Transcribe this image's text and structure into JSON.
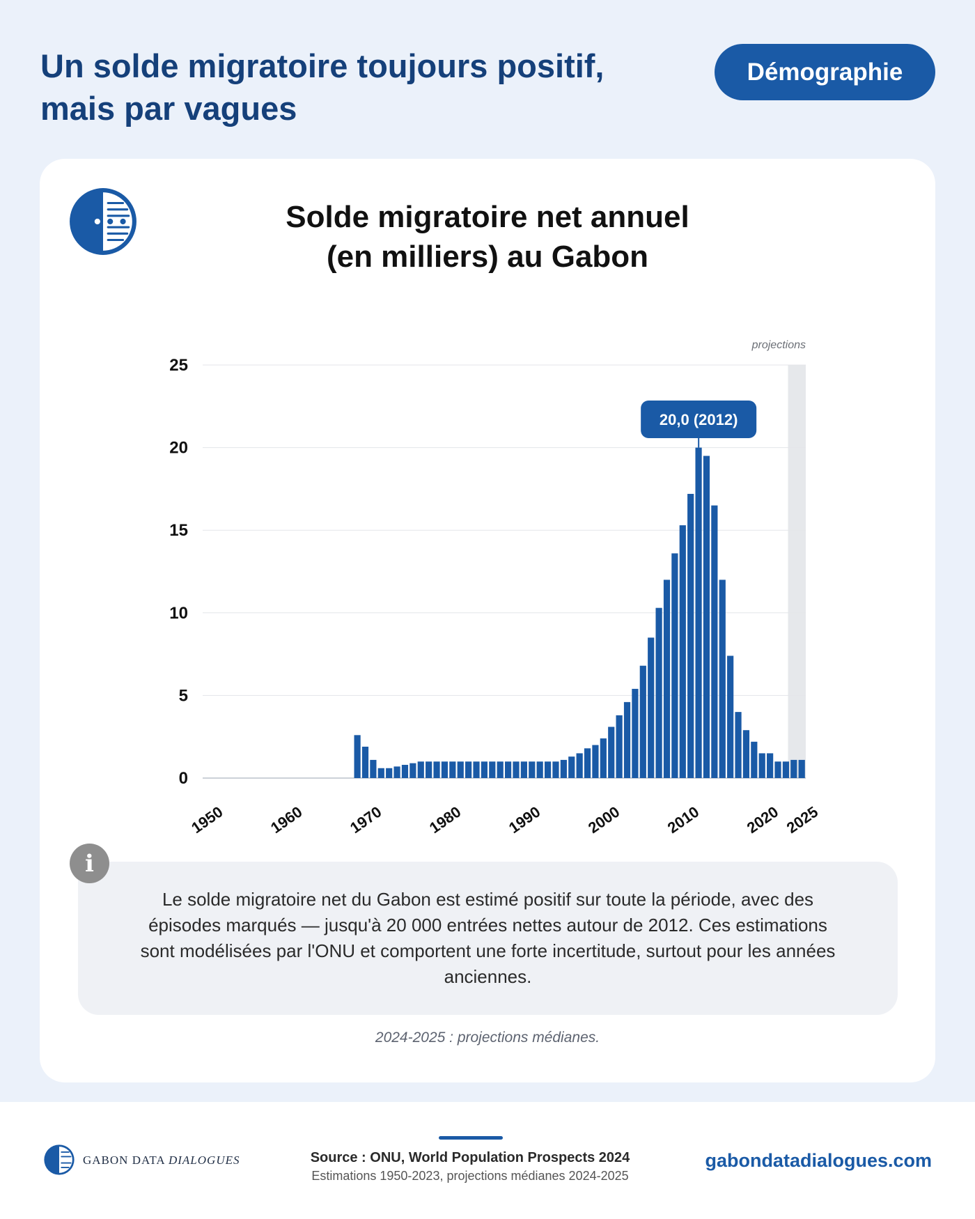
{
  "header": {
    "title_line1": "Un solde migratoire toujours positif,",
    "title_line2": "mais par vagues",
    "badge": "Démographie"
  },
  "card": {
    "logo_icon": "gabon-data-dialogues-logo-icon",
    "title_line1": "Solde migratoire net annuel",
    "title_line2": "(en milliers) au Gabon",
    "info_icon": "i",
    "info_text": "Le solde migratoire net du Gabon est estimé positif sur toute la période, avec des épisodes marqués — jusqu'à 20 000 entrées nettes autour de 2012. Ces estimations sont modélisées par l'ONU et comportent une forte incertitude, surtout pour les années anciennes.",
    "note": "2024-2025 : projections médianes."
  },
  "chart_data": {
    "type": "bar",
    "title": "Solde migratoire net annuel (en milliers) au Gabon",
    "xlabel": "",
    "ylabel": "",
    "x_start": 1950,
    "x_end": 2025,
    "x_tick_labels": [
      "1950",
      "1960",
      "1970",
      "1980",
      "1990",
      "2000",
      "2010",
      "2020",
      "2025"
    ],
    "y_tick_labels": [
      "0",
      "5",
      "10",
      "15",
      "20",
      "25"
    ],
    "ylim": [
      0,
      25
    ],
    "grid": true,
    "bar_color": "#1a5aa6",
    "projection_band": {
      "from": 2024,
      "to": 2025,
      "label": "projections",
      "color": "#e6e8eb"
    },
    "annotation": {
      "year": 2012,
      "label": "20,0 (2012)"
    },
    "series": [
      {
        "x": [
          1950,
          1951,
          1952,
          1953,
          1954,
          1955,
          1956,
          1957,
          1958,
          1959,
          1960,
          1961,
          1962,
          1963,
          1964,
          1965,
          1966,
          1967,
          1968,
          1969,
          1970,
          1971,
          1972,
          1973,
          1974,
          1975,
          1976,
          1977,
          1978,
          1979,
          1980,
          1981,
          1982,
          1983,
          1984,
          1985,
          1986,
          1987,
          1988,
          1989,
          1990,
          1991,
          1992,
          1993,
          1994,
          1995,
          1996,
          1997,
          1998,
          1999,
          2000,
          2001,
          2002,
          2003,
          2004,
          2005,
          2006,
          2007,
          2008,
          2009,
          2010,
          2011,
          2012,
          2013,
          2014,
          2015,
          2016,
          2017,
          2018,
          2019,
          2020,
          2021,
          2022,
          2023,
          2024,
          2025
        ],
        "values": [
          0,
          0,
          0,
          0,
          0,
          0,
          0,
          0,
          0,
          0,
          0,
          0,
          0,
          0,
          0,
          0,
          0,
          0,
          0,
          2.6,
          1.9,
          1.1,
          0.6,
          0.6,
          0.7,
          0.8,
          0.9,
          1.0,
          1.0,
          1.0,
          1.0,
          1.0,
          1.0,
          1.0,
          1.0,
          1.0,
          1.0,
          1.0,
          1.0,
          1.0,
          1.0,
          1.0,
          1.0,
          1.0,
          1.0,
          1.1,
          1.3,
          1.5,
          1.8,
          2.0,
          2.4,
          3.1,
          3.8,
          4.6,
          5.4,
          6.8,
          8.5,
          10.3,
          12.0,
          13.6,
          15.3,
          17.2,
          20.0,
          19.5,
          16.5,
          12.0,
          7.4,
          4.0,
          2.9,
          2.2,
          1.5,
          1.5,
          1.0,
          1.0,
          1.1,
          1.1
        ]
      }
    ]
  },
  "footer": {
    "brand_regular": "GABON DATA ",
    "brand_italic": "DIALOGUES",
    "source": "Source : ONU, World Population Prospects 2024",
    "source_sub": "Estimations 1950-2023, projections médianes 2024-2025",
    "url": "gabondatadialogues.com"
  }
}
